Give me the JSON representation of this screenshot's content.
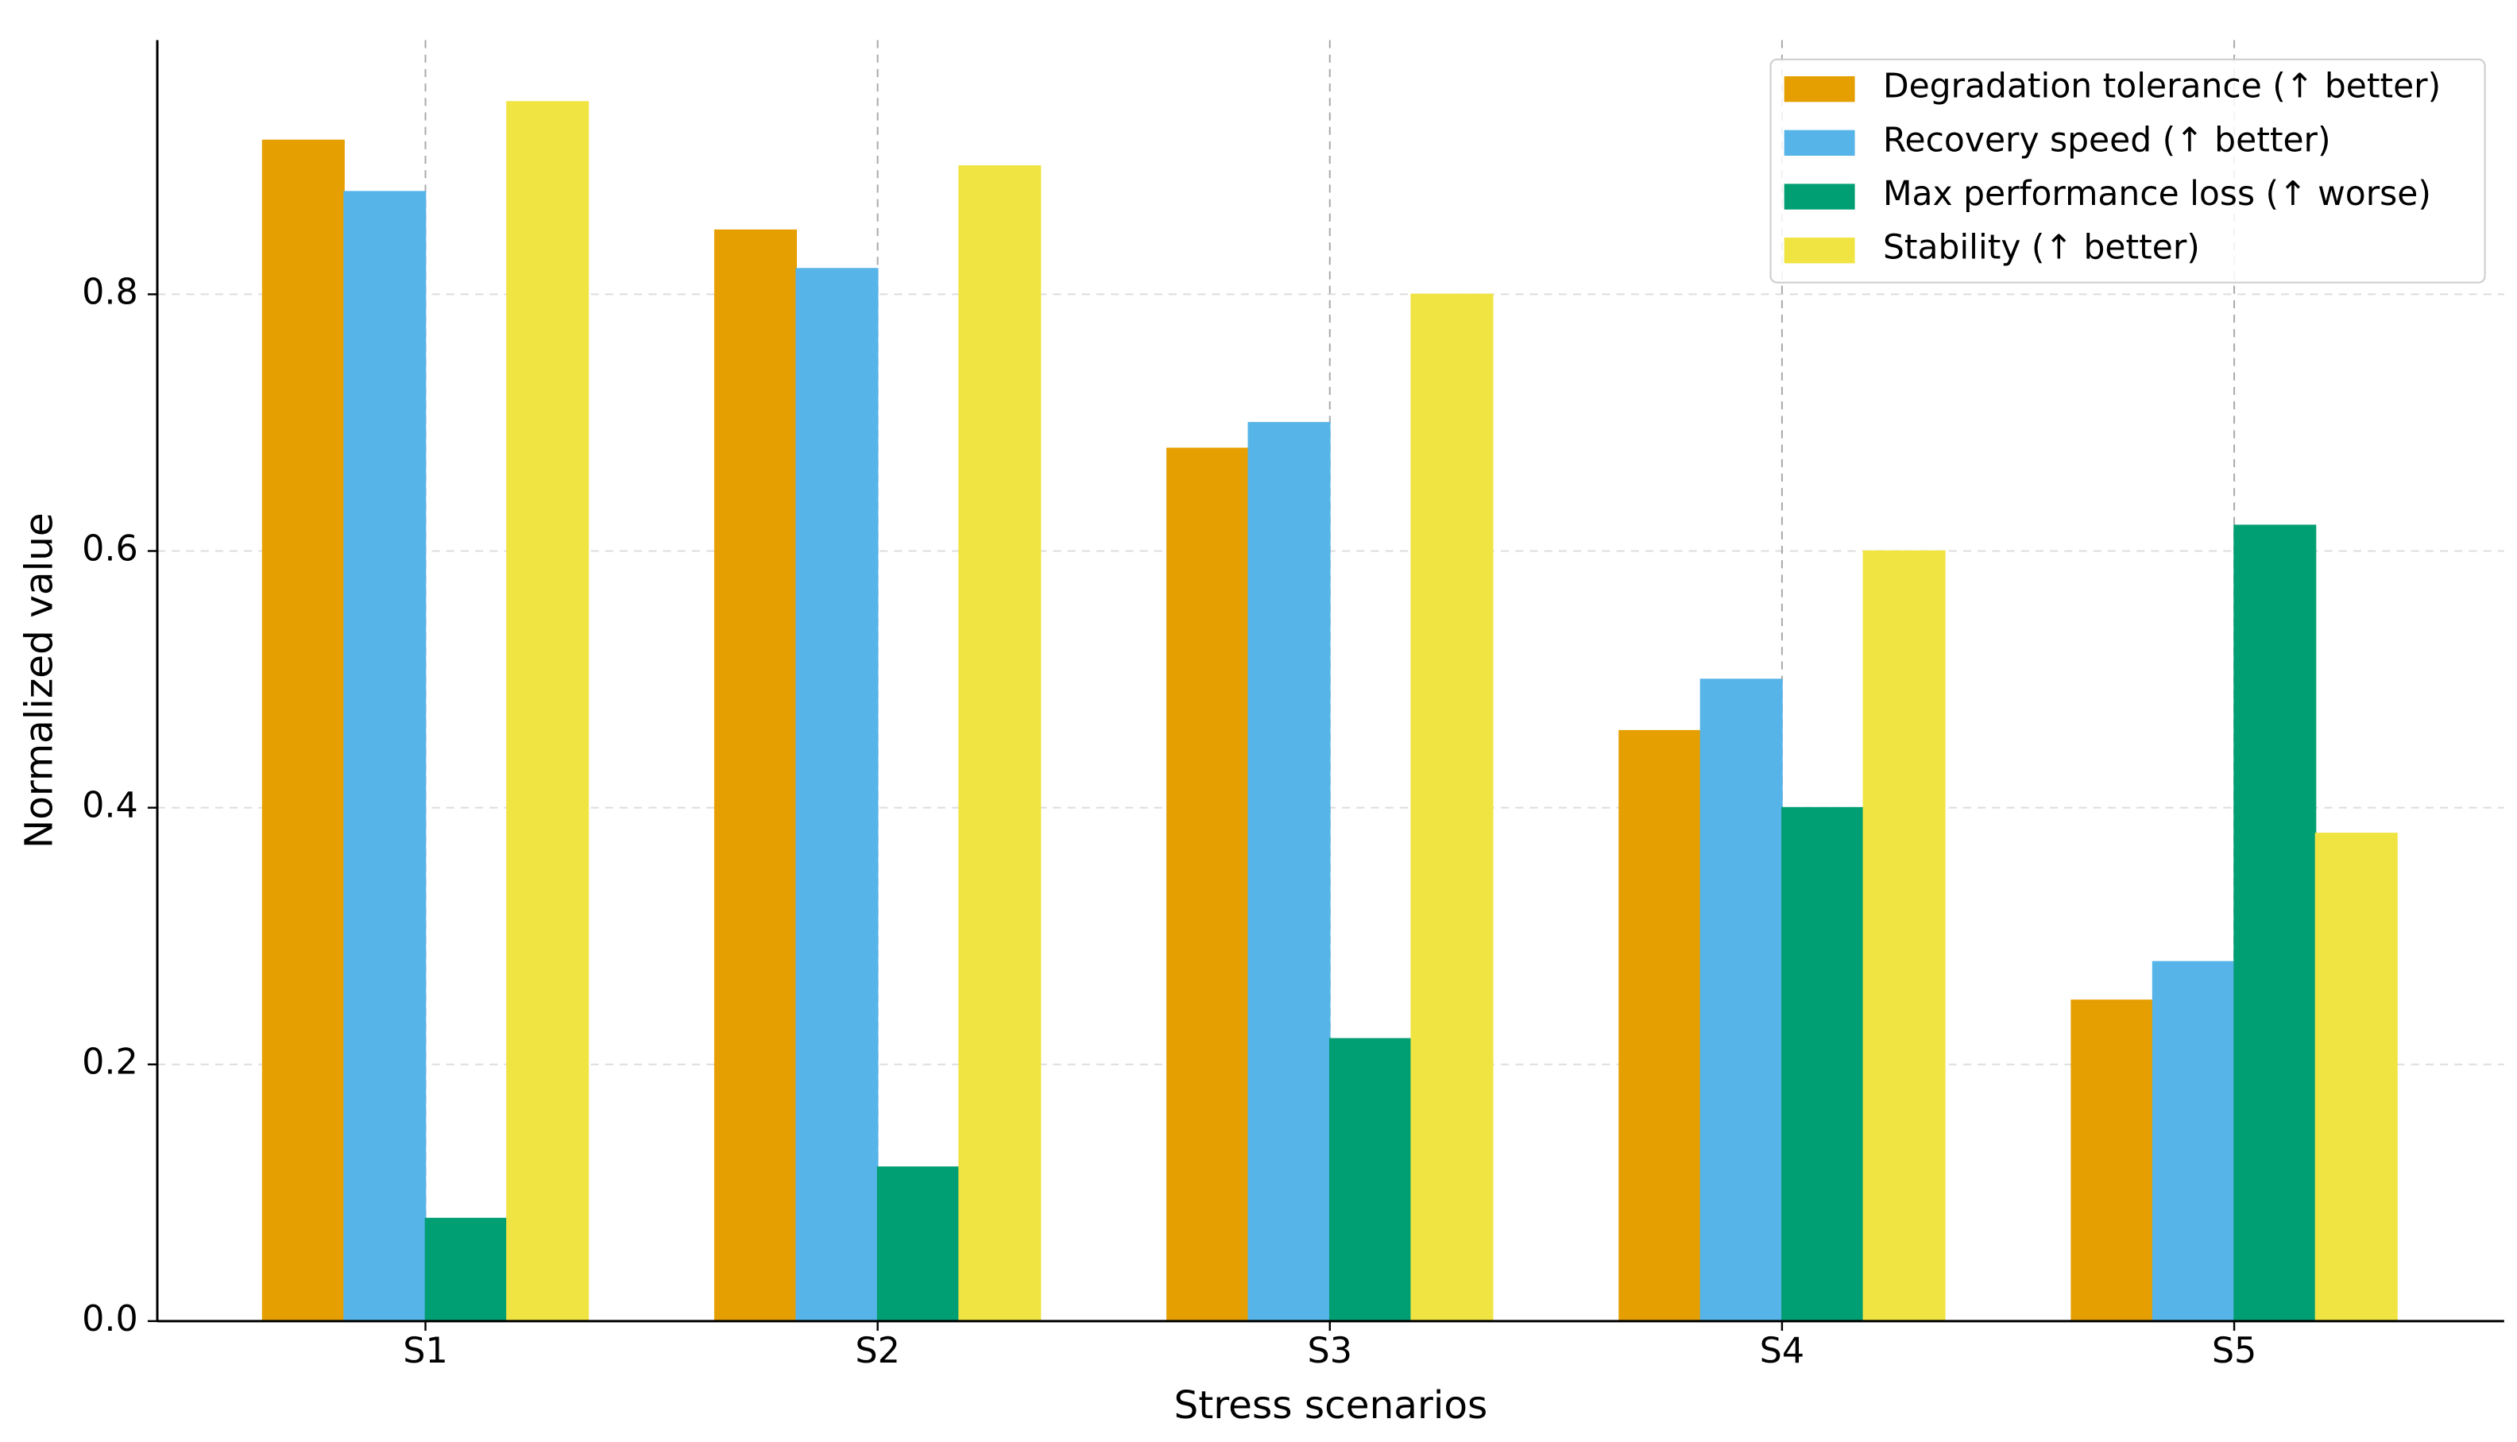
{
  "chart_data": {
    "type": "bar",
    "x_label": "Stress scenarios",
    "y_label": "Normalized value",
    "categories": [
      "S1",
      "S2",
      "S3",
      "S4",
      "S5"
    ],
    "series": [
      {
        "name": "Degradation tolerance (↑ better)",
        "color": "#E69F00",
        "values": [
          0.92,
          0.85,
          0.68,
          0.46,
          0.25
        ]
      },
      {
        "name": "Recovery speed (↑ better)",
        "color": "#56B4E9",
        "values": [
          0.88,
          0.82,
          0.7,
          0.5,
          0.28
        ]
      },
      {
        "name": "Max performance loss (↑ worse)",
        "color": "#009E73",
        "values": [
          0.08,
          0.12,
          0.22,
          0.4,
          0.62
        ]
      },
      {
        "name": "Stability (↑ better)",
        "color": "#F0E442",
        "values": [
          0.95,
          0.9,
          0.8,
          0.6,
          0.38
        ]
      }
    ],
    "ylim": [
      0,
      0.998
    ],
    "yticks": [
      {
        "value": 0,
        "label": "0.0"
      },
      0.2,
      0.4,
      0.6,
      0.8
    ],
    "grid": true,
    "legend": "upper right"
  }
}
